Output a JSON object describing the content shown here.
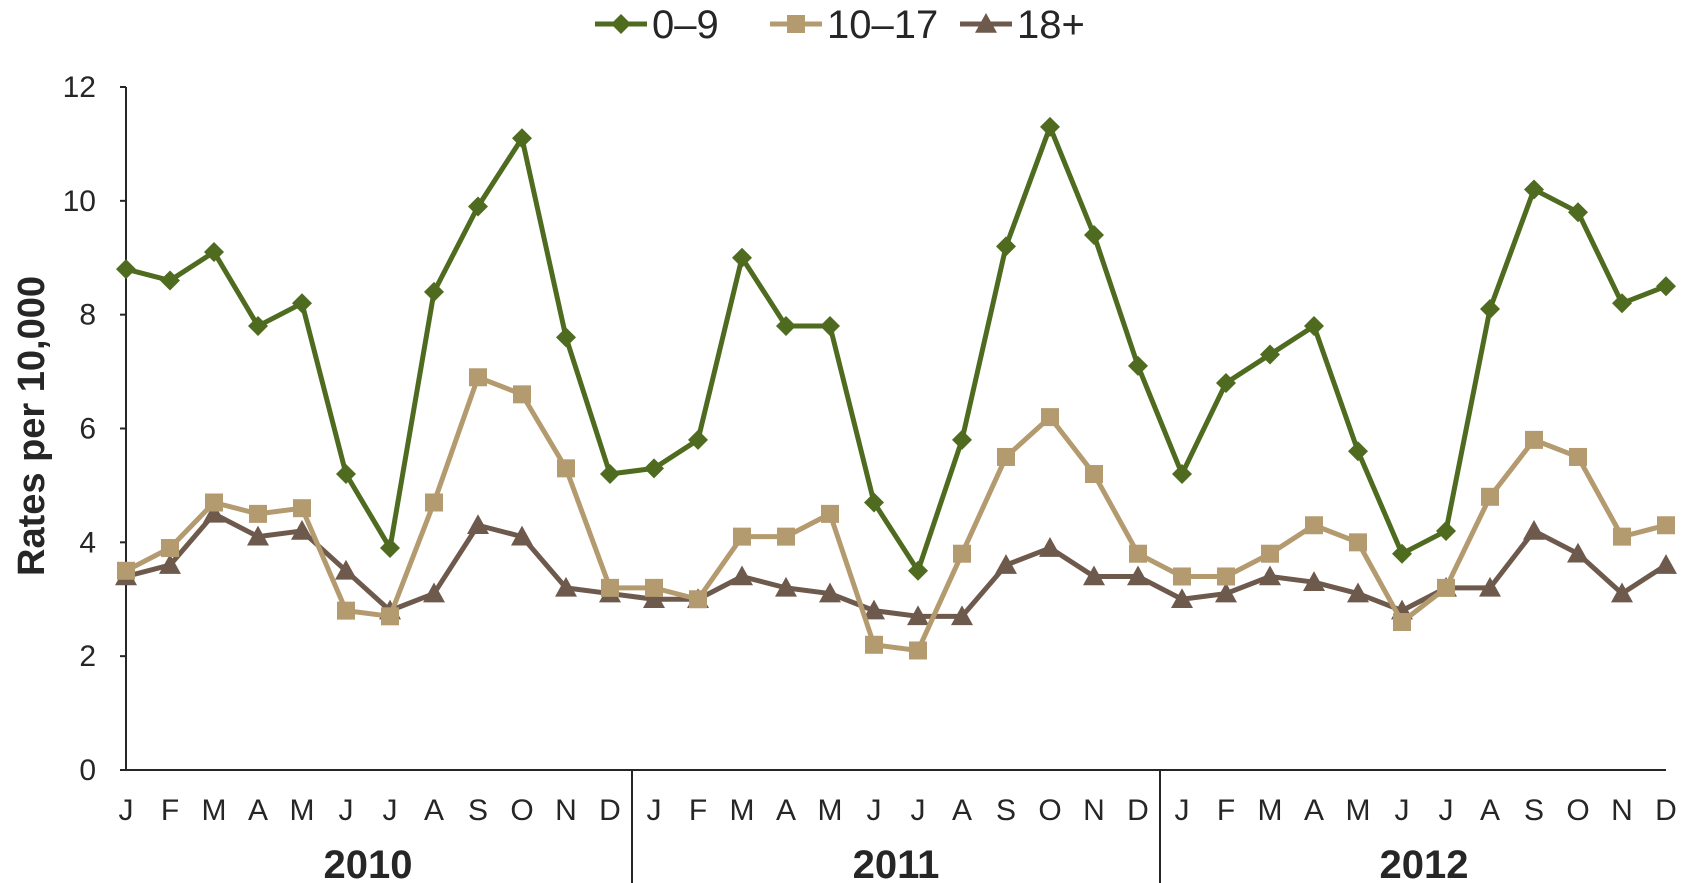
{
  "chart_data": {
    "type": "line",
    "title": "",
    "ylabel": "Rates per 10,000",
    "xlabel": "",
    "ylim": [
      0,
      12
    ],
    "yticks": [
      "0",
      "2",
      "4",
      "6",
      "8",
      "10",
      "12"
    ],
    "grid": false,
    "legend_position": "top-center",
    "categories": [
      "J",
      "F",
      "M",
      "A",
      "M",
      "J",
      "J",
      "A",
      "S",
      "O",
      "N",
      "D",
      "J",
      "F",
      "M",
      "A",
      "M",
      "J",
      "J",
      "A",
      "S",
      "O",
      "N",
      "D",
      "J",
      "F",
      "M",
      "A",
      "M",
      "J",
      "J",
      "A",
      "S",
      "O",
      "N",
      "D"
    ],
    "years": [
      {
        "label": "2010",
        "start": 0,
        "end": 11
      },
      {
        "label": "2011",
        "start": 12,
        "end": 23
      },
      {
        "label": "2012",
        "start": 24,
        "end": 35
      }
    ],
    "series": [
      {
        "name": "0–9",
        "marker": "diamond",
        "color": "#4e6b1f",
        "values": [
          8.8,
          8.6,
          9.1,
          7.8,
          8.2,
          5.2,
          3.9,
          8.4,
          9.9,
          11.1,
          7.6,
          5.2,
          5.3,
          5.8,
          9.0,
          7.8,
          7.8,
          4.7,
          3.5,
          5.8,
          9.2,
          11.3,
          9.4,
          7.1,
          5.2,
          6.8,
          7.3,
          7.8,
          5.6,
          3.8,
          4.2,
          8.1,
          10.2,
          9.8,
          8.2,
          8.5
        ]
      },
      {
        "name": "10–17",
        "marker": "square",
        "color": "#b49a6f",
        "values": [
          3.5,
          3.9,
          4.7,
          4.5,
          4.6,
          2.8,
          2.7,
          4.7,
          6.9,
          6.6,
          5.3,
          3.2,
          3.2,
          3.0,
          4.1,
          4.1,
          4.5,
          2.2,
          2.1,
          3.8,
          5.5,
          6.2,
          5.2,
          3.8,
          3.4,
          3.4,
          3.8,
          4.3,
          4.0,
          2.6,
          3.2,
          4.8,
          5.8,
          5.5,
          4.1,
          4.3
        ]
      },
      {
        "name": "18+",
        "marker": "triangle",
        "color": "#6e5a4d",
        "values": [
          3.4,
          3.6,
          4.5,
          4.1,
          4.2,
          3.5,
          2.8,
          3.1,
          4.3,
          4.1,
          3.2,
          3.1,
          3.0,
          3.0,
          3.4,
          3.2,
          3.1,
          2.8,
          2.7,
          2.7,
          3.6,
          3.9,
          3.4,
          3.4,
          3.0,
          3.1,
          3.4,
          3.3,
          3.1,
          2.8,
          3.2,
          3.2,
          4.2,
          3.8,
          3.1,
          3.6
        ]
      }
    ]
  }
}
